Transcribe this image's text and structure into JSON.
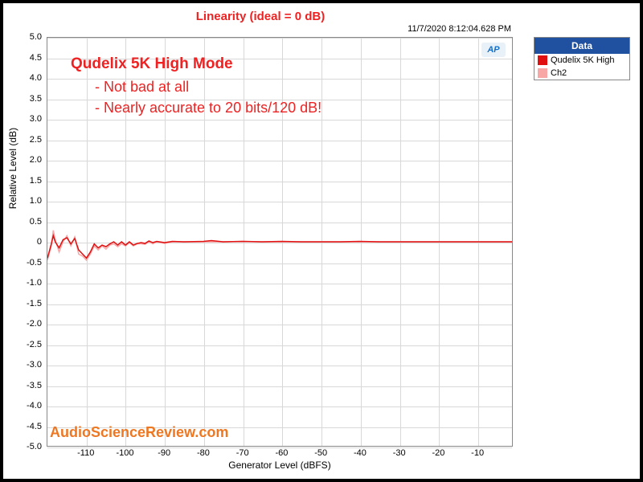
{
  "chart": {
    "title": "Linearity (ideal = 0 dB)",
    "title_color": "#ee2222",
    "title_fontsize": 15,
    "timestamp": "11/7/2020 8:12:04.628 PM",
    "xlabel": "Generator Level (dBFS)",
    "ylabel": "Relative Level (dB)",
    "xlim": [
      -120,
      -1
    ],
    "ylim": [
      -5.0,
      5.0
    ],
    "ytick_step": 0.5,
    "xticks": [
      -110,
      -100,
      -90,
      -80,
      -70,
      -60,
      -50,
      -40,
      -30,
      -20,
      -10
    ],
    "yticks": [
      -5.0,
      -4.5,
      -4.0,
      -3.5,
      -3.0,
      -2.5,
      -2.0,
      -1.5,
      -1.0,
      -0.5,
      0,
      0.5,
      1.0,
      1.5,
      2.0,
      2.5,
      3.0,
      3.5,
      4.0,
      4.5,
      5.0
    ],
    "background_color": "#ffffff",
    "grid_color": "#d8d8d8",
    "border_color": "#888888",
    "logo_text": "AP",
    "annotation_heading": "Qudelix 5K High Mode",
    "annotation_line1": "- Not bad at all",
    "annotation_line2": "- Nearly accurate to 20 bits/120 dB!",
    "annotation_color": "#ee2222",
    "watermark": "AudioScienceReview.com",
    "watermark_color": "#ee7722",
    "legend": {
      "header": "Data",
      "header_bg": "#2050a0",
      "items": [
        {
          "color": "#e01010",
          "label": "Qudelix 5K High"
        },
        {
          "color": "#f8a6a6",
          "label": "Ch2"
        }
      ]
    },
    "series": [
      {
        "name": "Ch2",
        "color": "#f8a6a6",
        "line_width": 1.5,
        "points": [
          [
            -120,
            -0.45
          ],
          [
            -119,
            -0.1
          ],
          [
            -118.5,
            0.28
          ],
          [
            -118,
            0.05
          ],
          [
            -117,
            -0.25
          ],
          [
            -116,
            0.0
          ],
          [
            -115,
            0.15
          ],
          [
            -114,
            -0.1
          ],
          [
            -113,
            0.12
          ],
          [
            -112,
            -0.3
          ],
          [
            -111,
            -0.35
          ],
          [
            -110,
            -0.45
          ],
          [
            -109,
            -0.3
          ],
          [
            -108,
            -0.1
          ],
          [
            -107,
            -0.2
          ],
          [
            -106,
            -0.1
          ],
          [
            -105,
            -0.18
          ],
          [
            -104,
            -0.08
          ],
          [
            -103,
            -0.05
          ],
          [
            -102,
            -0.12
          ],
          [
            -101,
            -0.05
          ],
          [
            -100,
            -0.1
          ],
          [
            -99,
            -0.02
          ],
          [
            -98,
            -0.1
          ],
          [
            -97,
            -0.05
          ],
          [
            -96,
            -0.05
          ],
          [
            -95,
            -0.06
          ],
          [
            -94,
            0.0
          ],
          [
            -93,
            -0.05
          ],
          [
            -92,
            0.0
          ],
          [
            -90,
            -0.04
          ],
          [
            -88,
            0.0
          ],
          [
            -85,
            0.0
          ],
          [
            -80,
            0.0
          ],
          [
            -75,
            0.0
          ],
          [
            -70,
            0.01
          ],
          [
            -65,
            0.0
          ],
          [
            -60,
            0.0
          ],
          [
            -55,
            0.0
          ],
          [
            -50,
            0.0
          ],
          [
            -45,
            0.0
          ],
          [
            -40,
            0.0
          ],
          [
            -35,
            0.0
          ],
          [
            -30,
            0.0
          ],
          [
            -25,
            0.0
          ],
          [
            -20,
            0.0
          ],
          [
            -15,
            0.0
          ],
          [
            -10,
            0.0
          ],
          [
            -5,
            0.0
          ],
          [
            -1,
            0.0
          ]
        ]
      },
      {
        "name": "Qudelix 5K High",
        "color": "#e01010",
        "line_width": 1.5,
        "points": [
          [
            -120,
            -0.4
          ],
          [
            -119,
            -0.05
          ],
          [
            -118.5,
            0.15
          ],
          [
            -118,
            0.0
          ],
          [
            -117,
            -0.15
          ],
          [
            -116,
            0.05
          ],
          [
            -115,
            0.1
          ],
          [
            -114,
            -0.05
          ],
          [
            -113,
            0.08
          ],
          [
            -112,
            -0.2
          ],
          [
            -111,
            -0.3
          ],
          [
            -110,
            -0.4
          ],
          [
            -109,
            -0.25
          ],
          [
            -108,
            -0.05
          ],
          [
            -107,
            -0.15
          ],
          [
            -106,
            -0.08
          ],
          [
            -105,
            -0.12
          ],
          [
            -104,
            -0.05
          ],
          [
            -103,
            0.0
          ],
          [
            -102,
            -0.08
          ],
          [
            -101,
            0.0
          ],
          [
            -100,
            -0.08
          ],
          [
            -99,
            0.0
          ],
          [
            -98,
            -0.08
          ],
          [
            -97,
            -0.04
          ],
          [
            -96,
            -0.02
          ],
          [
            -95,
            -0.04
          ],
          [
            -94,
            0.02
          ],
          [
            -93,
            -0.02
          ],
          [
            -92,
            0.01
          ],
          [
            -90,
            -0.02
          ],
          [
            -88,
            0.01
          ],
          [
            -85,
            0.0
          ],
          [
            -80,
            0.01
          ],
          [
            -78,
            0.03
          ],
          [
            -75,
            0.0
          ],
          [
            -70,
            0.01
          ],
          [
            -65,
            0.0
          ],
          [
            -60,
            0.01
          ],
          [
            -55,
            0.0
          ],
          [
            -50,
            0.0
          ],
          [
            -45,
            0.0
          ],
          [
            -40,
            0.01
          ],
          [
            -35,
            0.0
          ],
          [
            -30,
            0.0
          ],
          [
            -25,
            0.0
          ],
          [
            -20,
            0.0
          ],
          [
            -15,
            0.0
          ],
          [
            -10,
            0.0
          ],
          [
            -5,
            0.0
          ],
          [
            -1,
            0.0
          ]
        ]
      }
    ]
  }
}
